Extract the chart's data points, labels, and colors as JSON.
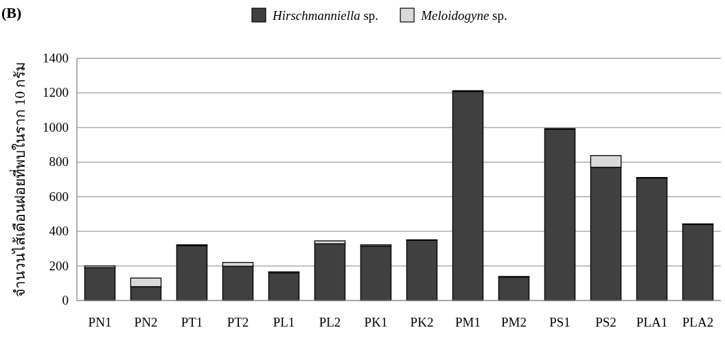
{
  "chart_data": {
    "type": "bar",
    "title": "(B)",
    "ylabel": "จำนวนไส้เดือนฝอยที่พบในราก 10 กรัม",
    "categories": [
      "PN1",
      "PN2",
      "PT1",
      "PT2",
      "PL1",
      "PL2",
      "PK1",
      "PK2",
      "PM1",
      "PM2",
      "PS1",
      "PS2",
      "PLA1",
      "PLA2"
    ],
    "series": [
      {
        "name": "*Hirschmanniella* sp.",
        "color": "#404040",
        "values": [
          190,
          80,
          318,
          198,
          160,
          328,
          315,
          348,
          1208,
          136,
          990,
          770,
          708,
          440
        ]
      },
      {
        "name": "*Meloidogyne* sp.",
        "color": "#d9d9d9",
        "values": [
          10,
          50,
          4,
          22,
          6,
          17,
          7,
          3,
          5,
          3,
          4,
          68,
          3,
          3
        ]
      }
    ],
    "stacked": true,
    "ylim": [
      0,
      1400
    ],
    "yticks": [
      0,
      200,
      400,
      600,
      800,
      1000,
      1200,
      1400
    ],
    "grid": "y",
    "legend": "top"
  }
}
